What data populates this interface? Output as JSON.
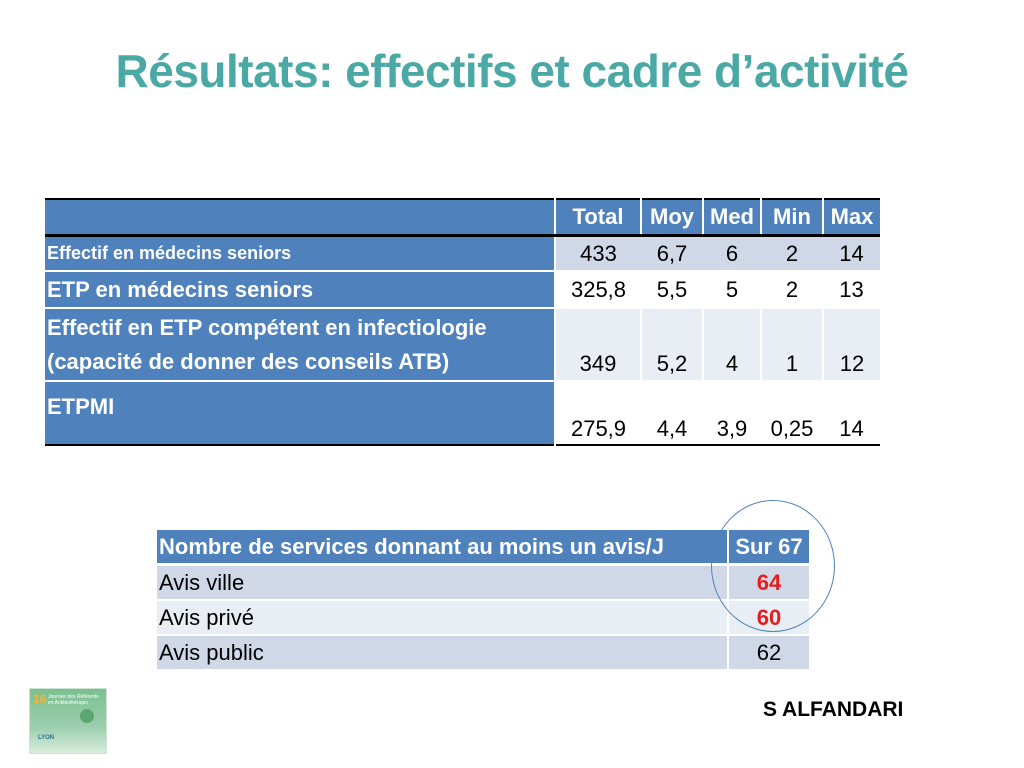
{
  "title": "Résultats: effectifs et cadre d’activité",
  "table1": {
    "headers": [
      "",
      "Total",
      "Moy",
      "Med",
      "Min",
      "Max"
    ],
    "rows": [
      {
        "label": "Effectif en médecins seniors",
        "values": [
          "433",
          "6,7",
          "6",
          "2",
          "14"
        ]
      },
      {
        "label": "ETP en médecins seniors",
        "values": [
          "325,8",
          "5,5",
          "5",
          "2",
          "13"
        ]
      },
      {
        "label_lines": [
          "Effectif en ETP compétent en infectiologie",
          "(capacité de donner des conseils ATB)"
        ],
        "values": [
          "349",
          "5,2",
          "4",
          "1",
          "12"
        ]
      },
      {
        "label": "ETPMI",
        "values": [
          "275,9",
          "4,4",
          "3,9",
          "0,25",
          "14"
        ]
      }
    ]
  },
  "table2": {
    "header": {
      "label": "Nombre de services donnant au moins un avis/J",
      "value": "Sur 67"
    },
    "rows": [
      {
        "label": "Avis ville",
        "value": "64"
      },
      {
        "label": "Avis privé",
        "value": "60"
      },
      {
        "label": "Avis public",
        "value": "62"
      }
    ]
  },
  "highlight_color": "#e41e1e",
  "author": "S ALFANDARI",
  "logo": {
    "number": "16",
    "text_lines": [
      "Journée des Référents",
      "en Antibiothérapie"
    ],
    "city": "LYON"
  }
}
